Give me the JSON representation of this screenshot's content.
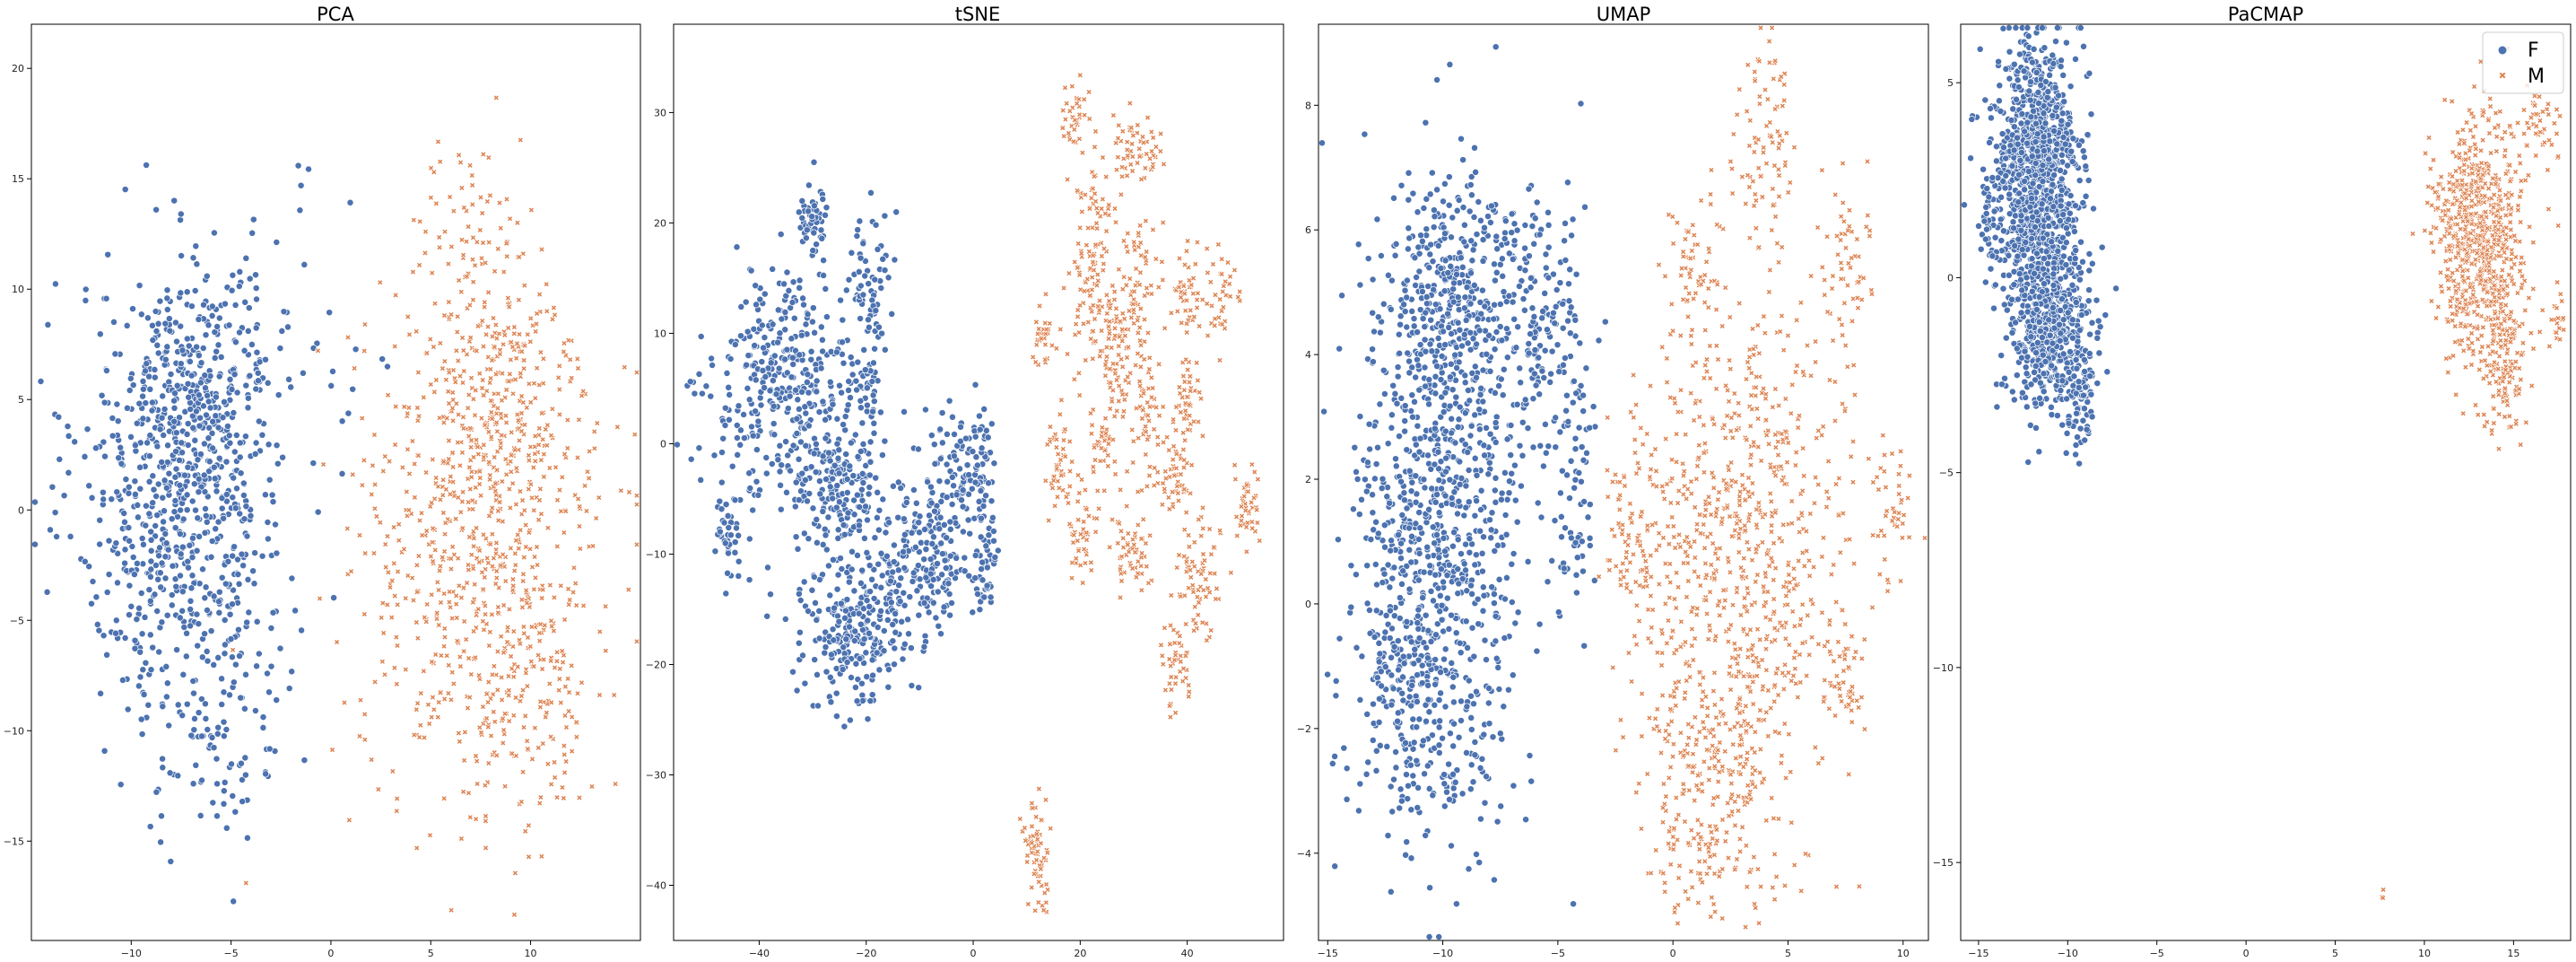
{
  "colors": {
    "F": "#4c72b0",
    "M": "#dd8452",
    "frame": "#000000",
    "legend_border": "#cccccc"
  },
  "legend": {
    "entries": [
      {
        "label": "F",
        "color": "#4c72b0",
        "marker": "circle"
      },
      {
        "label": "M",
        "color": "#dd8452",
        "marker": "x"
      }
    ],
    "placement": "top-right of last panel"
  },
  "chart_data": [
    {
      "type": "scatter",
      "title": "PCA",
      "xlim": [
        -15,
        15.5
      ],
      "ylim": [
        -19.5,
        22
      ],
      "xticks": [
        -10,
        -5,
        0,
        5,
        10
      ],
      "yticks": [
        -15,
        -10,
        -5,
        0,
        5,
        10,
        15,
        20
      ],
      "tick_labels_x": [
        "−10",
        "−5",
        "0",
        "5",
        "10"
      ],
      "tick_labels_y": [
        "−15",
        "−10",
        "−5",
        "0",
        "5",
        "10",
        "15",
        "20"
      ],
      "grid": false,
      "series": [
        {
          "name": "F",
          "clusters": [
            {
              "cx": -7.5,
              "cy": 0.5,
              "sx": 2.6,
              "sy": 5.0,
              "n": 700
            },
            {
              "cx": -6.5,
              "cy": 5.5,
              "sx": 1.8,
              "sy": 2.5,
              "n": 200
            },
            {
              "cx": -5.5,
              "cy": -11.0,
              "sx": 1.6,
              "sy": 2.5,
              "n": 80
            },
            {
              "cx": -3.0,
              "cy": 8.5,
              "sx": 2.0,
              "sy": 3.0,
              "n": 40
            }
          ]
        },
        {
          "name": "M",
          "clusters": [
            {
              "cx": 7.5,
              "cy": -1.5,
              "sx": 3.0,
              "sy": 5.5,
              "n": 700
            },
            {
              "cx": 8.5,
              "cy": 5.5,
              "sx": 2.0,
              "sy": 3.5,
              "n": 200
            },
            {
              "cx": 10.0,
              "cy": -9.5,
              "sx": 1.6,
              "sy": 2.5,
              "n": 100
            },
            {
              "cx": 6.5,
              "cy": 13.5,
              "sx": 1.8,
              "sy": 2.0,
              "n": 50
            }
          ]
        }
      ]
    },
    {
      "type": "scatter",
      "title": "tSNE",
      "xlim": [
        -56,
        58
      ],
      "ylim": [
        -45,
        38
      ],
      "xticks": [
        -40,
        -20,
        0,
        20,
        40
      ],
      "yticks": [
        -40,
        -30,
        -20,
        -10,
        0,
        10,
        20,
        30
      ],
      "tick_labels_x": [
        "−40",
        "−20",
        "0",
        "20",
        "40"
      ],
      "tick_labels_y": [
        "−40",
        "−30",
        "−20",
        "−10",
        "0",
        "10",
        "20",
        "30"
      ],
      "grid": false,
      "series": [
        {
          "name": "F",
          "clusters": [
            {
              "cx": -35,
              "cy": 5,
              "sx": 7,
              "sy": 5,
              "n": 380
            },
            {
              "cx": -22,
              "cy": -16,
              "sx": 5,
              "sy": 4,
              "n": 280
            },
            {
              "cx": -30,
              "cy": 20,
              "sx": 1.5,
              "sy": 2,
              "n": 50
            },
            {
              "cx": -19,
              "cy": 15,
              "sx": 2,
              "sy": 3,
              "n": 70
            },
            {
              "cx": -25,
              "cy": -4,
              "sx": 4,
              "sy": 3,
              "n": 160
            },
            {
              "cx": -12,
              "cy": -10,
              "sx": 3,
              "sy": 4,
              "n": 110
            },
            {
              "cx": -4,
              "cy": -3,
              "sx": 2.5,
              "sy": 3,
              "n": 90
            },
            {
              "cx": -45,
              "cy": -8,
              "sx": 1.5,
              "sy": 2,
              "n": 40
            },
            {
              "cx": -6,
              "cy": -12,
              "sx": 2,
              "sy": 2,
              "n": 60
            },
            {
              "cx": 2,
              "cy": -12,
              "sx": 1.5,
              "sy": 2,
              "n": 50
            },
            {
              "cx": 2,
              "cy": -2,
              "sx": 1.2,
              "sy": 3,
              "n": 50
            },
            {
              "cx": -20,
              "cy": 5,
              "sx": 1.5,
              "sy": 2,
              "n": 30
            }
          ]
        },
        {
          "name": "M",
          "clusters": [
            {
              "cx": 12,
              "cy": -37,
              "sx": 1.3,
              "sy": 2.2,
              "n": 70
            },
            {
              "cx": 19,
              "cy": 30,
              "sx": 1.2,
              "sy": 1.5,
              "n": 35
            },
            {
              "cx": 30,
              "cy": 27,
              "sx": 2.5,
              "sy": 1.5,
              "n": 60
            },
            {
              "cx": 22,
              "cy": 14,
              "sx": 2.5,
              "sy": 3,
              "n": 80
            },
            {
              "cx": 13,
              "cy": 10,
              "sx": 1,
              "sy": 1.5,
              "n": 30
            },
            {
              "cx": 31,
              "cy": 15,
              "sx": 2,
              "sy": 3,
              "n": 60
            },
            {
              "cx": 28,
              "cy": 8,
              "sx": 3,
              "sy": 3,
              "n": 100
            },
            {
              "cx": 16,
              "cy": -2,
              "sx": 1.2,
              "sy": 2,
              "n": 45
            },
            {
              "cx": 20,
              "cy": -8,
              "sx": 1.5,
              "sy": 2,
              "n": 45
            },
            {
              "cx": 24,
              "cy": 0,
              "sx": 1.5,
              "sy": 2,
              "n": 40
            },
            {
              "cx": 30,
              "cy": -10,
              "sx": 2,
              "sy": 2,
              "n": 55
            },
            {
              "cx": 40,
              "cy": 14,
              "sx": 1.5,
              "sy": 2,
              "n": 40
            },
            {
              "cx": 46,
              "cy": 13,
              "sx": 1.5,
              "sy": 2,
              "n": 40
            },
            {
              "cx": 40,
              "cy": 4,
              "sx": 1.5,
              "sy": 2.5,
              "n": 50
            },
            {
              "cx": 38,
              "cy": -3,
              "sx": 1.2,
              "sy": 2,
              "n": 40
            },
            {
              "cx": 33,
              "cy": 0,
              "sx": 1.5,
              "sy": 3,
              "n": 50
            },
            {
              "cx": 42,
              "cy": -12,
              "sx": 2,
              "sy": 3,
              "n": 70
            },
            {
              "cx": 38,
              "cy": -20,
              "sx": 1.5,
              "sy": 2,
              "n": 45
            },
            {
              "cx": 51,
              "cy": -5,
              "sx": 1.2,
              "sy": 2,
              "n": 40
            },
            {
              "cx": 23,
              "cy": 22,
              "sx": 2,
              "sy": 2,
              "n": 40
            }
          ]
        }
      ]
    },
    {
      "type": "scatter",
      "title": "UMAP",
      "xlim": [
        -15.4,
        11.1
      ],
      "ylim": [
        -5.4,
        9.3
      ],
      "xticks": [
        -15,
        -10,
        -5,
        0,
        5,
        10
      ],
      "yticks": [
        -4,
        -2,
        0,
        2,
        4,
        6,
        8
      ],
      "tick_labels_x": [
        "−15",
        "−10",
        "−5",
        "0",
        "5",
        "10"
      ],
      "tick_labels_y": [
        "−4",
        "−2",
        "0",
        "2",
        "4",
        "6",
        "8"
      ],
      "grid": false,
      "series": [
        {
          "name": "F",
          "clusters": [
            {
              "cx": -10,
              "cy": 1.5,
              "sx": 1.8,
              "sy": 2.4,
              "n": 900
            },
            {
              "cx": -9.5,
              "cy": 5.0,
              "sx": 1.4,
              "sy": 1.0,
              "n": 250
            },
            {
              "cx": -5.5,
              "cy": 4.5,
              "sx": 1.0,
              "sy": 1.0,
              "n": 150
            },
            {
              "cx": -11.5,
              "cy": -1.5,
              "sx": 1.2,
              "sy": 1.2,
              "n": 200
            },
            {
              "cx": -4.2,
              "cy": 1.8,
              "sx": 0.6,
              "sy": 1.0,
              "n": 60
            }
          ]
        },
        {
          "name": "M",
          "clusters": [
            {
              "cx": 3.0,
              "cy": 1.0,
              "sx": 2.3,
              "sy": 2.0,
              "n": 750
            },
            {
              "cx": 1.5,
              "cy": -3.0,
              "sx": 1.5,
              "sy": 1.0,
              "n": 250
            },
            {
              "cx": 4.0,
              "cy": 7.6,
              "sx": 0.6,
              "sy": 0.8,
              "n": 80
            },
            {
              "cx": 1.0,
              "cy": 5.5,
              "sx": 0.5,
              "sy": 0.5,
              "n": 50
            },
            {
              "cx": 7.5,
              "cy": 5.5,
              "sx": 0.6,
              "sy": 0.7,
              "n": 60
            },
            {
              "cx": 9.5,
              "cy": 1.5,
              "sx": 0.4,
              "sy": 0.5,
              "n": 40
            },
            {
              "cx": 7.5,
              "cy": -1.3,
              "sx": 0.5,
              "sy": 0.5,
              "n": 50
            },
            {
              "cx": -1.5,
              "cy": 1.0,
              "sx": 0.7,
              "sy": 0.8,
              "n": 100
            }
          ]
        }
      ]
    },
    {
      "type": "scatter",
      "title": "PaCMAP",
      "xlim": [
        -16,
        18.2
      ],
      "ylim": [
        -17,
        6.5
      ],
      "xticks": [
        -15,
        -10,
        -5,
        0,
        5,
        10,
        15
      ],
      "yticks": [
        -15,
        -10,
        -5,
        0,
        5
      ],
      "tick_labels_x": [
        "−15",
        "−10",
        "−5",
        "0",
        "5",
        "10",
        "15"
      ],
      "tick_labels_y": [
        "−15",
        "−10",
        "−5",
        "0",
        "5"
      ],
      "grid": false,
      "series": [
        {
          "name": "F",
          "clusters": [
            {
              "cx": -11.8,
              "cy": 2.5,
              "sx": 1.2,
              "sy": 1.8,
              "n": 1100
            },
            {
              "cx": -11.0,
              "cy": -1.5,
              "sx": 1.1,
              "sy": 1.1,
              "n": 450
            },
            {
              "cx": -9.3,
              "cy": -3.2,
              "sx": 0.4,
              "sy": 0.6,
              "n": 60
            },
            {
              "cx": -14.3,
              "cy": 1.5,
              "sx": 0.3,
              "sy": 0.6,
              "n": 40
            }
          ]
        },
        {
          "name": "M",
          "clusters": [
            {
              "cx": 13.0,
              "cy": 1.0,
              "sx": 1.2,
              "sy": 1.6,
              "n": 700
            },
            {
              "cx": 14.5,
              "cy": -2.0,
              "sx": 0.6,
              "sy": 1.2,
              "n": 150
            },
            {
              "cx": 16.5,
              "cy": 3.8,
              "sx": 0.6,
              "sy": 0.4,
              "n": 40
            },
            {
              "cx": 17.5,
              "cy": -1.0,
              "sx": 0.2,
              "sy": 0.4,
              "n": 20
            },
            {
              "cx": 11.5,
              "cy": 1.5,
              "sx": 0.6,
              "sy": 0.6,
              "n": 60
            },
            {
              "cx": 7.6,
              "cy": -15.8,
              "sx": 0.1,
              "sy": 0.1,
              "n": 3
            }
          ]
        }
      ]
    }
  ]
}
